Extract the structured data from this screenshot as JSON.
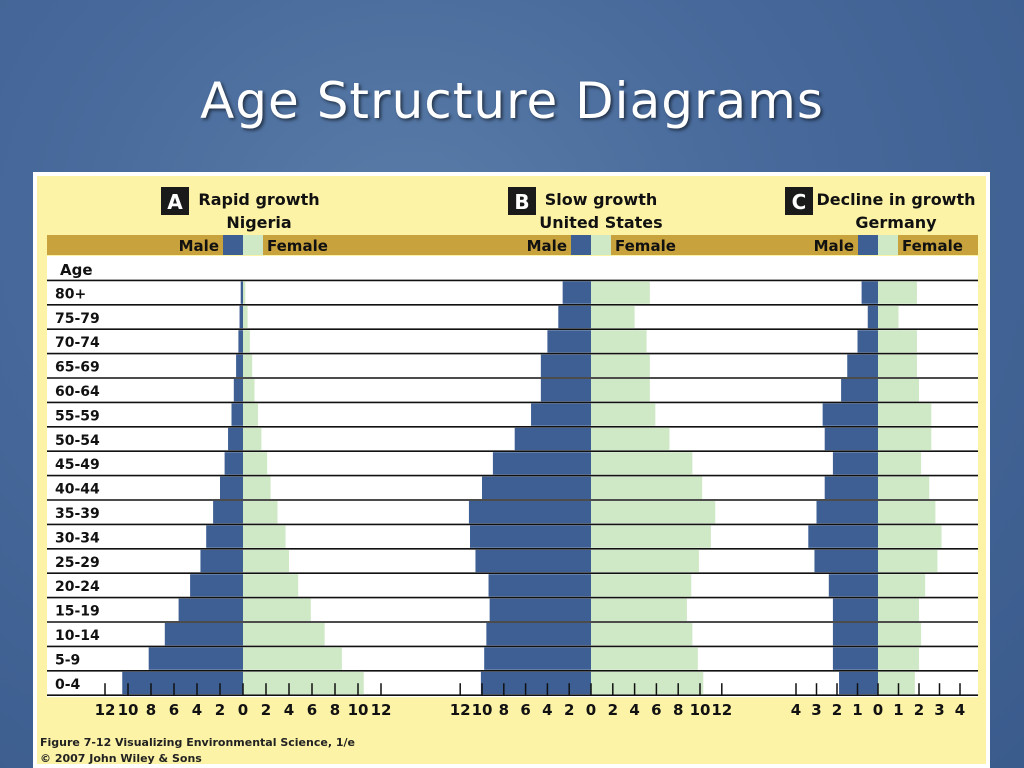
{
  "slide": {
    "title": "Age Structure Diagrams"
  },
  "figure": {
    "caption_line1": "Figure 7-12  Visualizing Environmental Science, 1/e",
    "caption_line2": "© 2007 John Wiley & Sons"
  },
  "colors": {
    "male": "#3d5f94",
    "female": "#cfe8c6",
    "header_band": "#c8a23c",
    "panel_bg": "#fcf3a6",
    "badge": "#1a1a1a"
  },
  "labels": {
    "age_header": "Age",
    "male": "Male",
    "female": "Female"
  },
  "chart_data": [
    {
      "type": "bar",
      "panel_letter": "A",
      "title": "Rapid growth",
      "subtitle": "Nigeria",
      "categories": [
        "80+",
        "75-79",
        "70-74",
        "65-69",
        "60-64",
        "55-59",
        "50-54",
        "45-49",
        "40-44",
        "35-39",
        "30-34",
        "25-29",
        "20-24",
        "15-19",
        "10-14",
        "5-9",
        "0-4"
      ],
      "series": [
        {
          "name": "Male",
          "values": [
            0.2,
            0.3,
            0.4,
            0.6,
            0.8,
            1.0,
            1.3,
            1.6,
            2.0,
            2.6,
            3.2,
            3.7,
            4.6,
            5.6,
            6.8,
            8.2,
            10.5
          ]
        },
        {
          "name": "Female",
          "values": [
            0.2,
            0.4,
            0.6,
            0.8,
            1.0,
            1.3,
            1.6,
            2.1,
            2.4,
            3.0,
            3.7,
            4.0,
            4.8,
            5.9,
            7.1,
            8.6,
            10.5
          ]
        }
      ],
      "x_ticks": [
        "12",
        "10",
        "8",
        "6",
        "4",
        "2",
        "0",
        "2",
        "4",
        "6",
        "8",
        "10",
        "12"
      ],
      "xlim": [
        -12,
        12
      ]
    },
    {
      "type": "bar",
      "panel_letter": "B",
      "title": "Slow growth",
      "subtitle": "United States",
      "categories": [
        "80+",
        "75-79",
        "70-74",
        "65-69",
        "60-64",
        "55-59",
        "50-54",
        "45-49",
        "40-44",
        "35-39",
        "30-34",
        "25-29",
        "20-24",
        "15-19",
        "10-14",
        "5-9",
        "0-4"
      ],
      "series": [
        {
          "name": "Male",
          "values": [
            2.6,
            3.0,
            4.0,
            4.6,
            4.6,
            5.5,
            7.0,
            9.0,
            10.0,
            11.2,
            11.1,
            10.6,
            9.4,
            9.3,
            9.6,
            9.8,
            10.1
          ]
        },
        {
          "name": "Female",
          "values": [
            5.4,
            4.0,
            5.1,
            5.4,
            5.4,
            5.9,
            7.2,
            9.3,
            10.2,
            11.4,
            11.0,
            9.9,
            9.2,
            8.8,
            9.3,
            9.8,
            10.3
          ]
        }
      ],
      "x_ticks": [
        "12",
        "10",
        "8",
        "6",
        "4",
        "2",
        "0",
        "2",
        "4",
        "6",
        "8",
        "10",
        "12"
      ],
      "xlim": [
        -12,
        12
      ]
    },
    {
      "type": "bar",
      "panel_letter": "C",
      "title": "Decline in growth",
      "subtitle": "Germany",
      "categories": [
        "80+",
        "75-79",
        "70-74",
        "65-69",
        "60-64",
        "55-59",
        "50-54",
        "45-49",
        "40-44",
        "35-39",
        "30-34",
        "25-29",
        "20-24",
        "15-19",
        "10-14",
        "5-9",
        "0-4"
      ],
      "series": [
        {
          "name": "Male",
          "values": [
            0.8,
            0.5,
            1.0,
            1.5,
            1.8,
            2.7,
            2.6,
            2.2,
            2.6,
            3.0,
            3.4,
            3.1,
            2.4,
            2.2,
            2.2,
            2.2,
            1.9
          ]
        },
        {
          "name": "Female",
          "values": [
            1.9,
            1.0,
            1.9,
            1.9,
            2.0,
            2.6,
            2.6,
            2.1,
            2.5,
            2.8,
            3.1,
            2.9,
            2.3,
            2.0,
            2.1,
            2.0,
            1.8
          ]
        }
      ],
      "x_ticks": [
        "4",
        "3",
        "2",
        "1",
        "0",
        "1",
        "2",
        "3",
        "4"
      ],
      "xlim": [
        -4,
        4
      ]
    }
  ]
}
